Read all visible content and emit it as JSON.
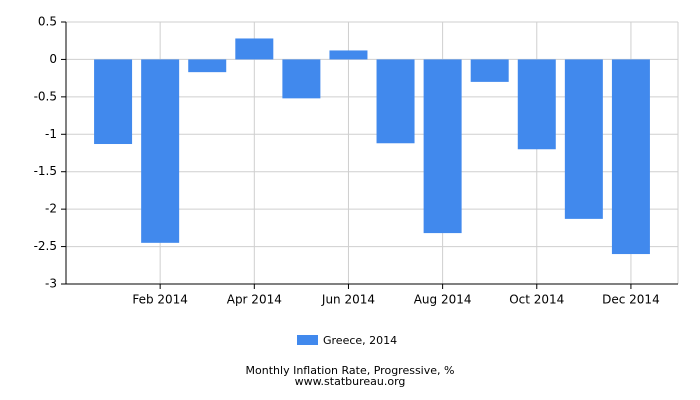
{
  "chart_data": {
    "type": "bar",
    "title": "Monthly Inflation Rate, Progressive, %",
    "source": "www.statbureau.org",
    "categories": [
      null,
      "Feb 2014",
      null,
      "Apr 2014",
      null,
      "Jun 2014",
      null,
      "Aug 2014",
      null,
      "Oct 2014",
      null,
      "Dec 2014"
    ],
    "series": [
      {
        "name": "Greece, 2014",
        "color": "#4189ed",
        "values": [
          -1.13,
          -2.45,
          -0.17,
          0.28,
          -0.52,
          0.12,
          -1.12,
          -2.32,
          -0.3,
          -1.2,
          -2.13,
          -2.6
        ]
      }
    ],
    "ylim": [
      -3,
      0.5
    ],
    "yticks": [
      0.5,
      0,
      -0.5,
      -1,
      -1.5,
      -2,
      -2.5,
      -3
    ],
    "grid": true
  }
}
